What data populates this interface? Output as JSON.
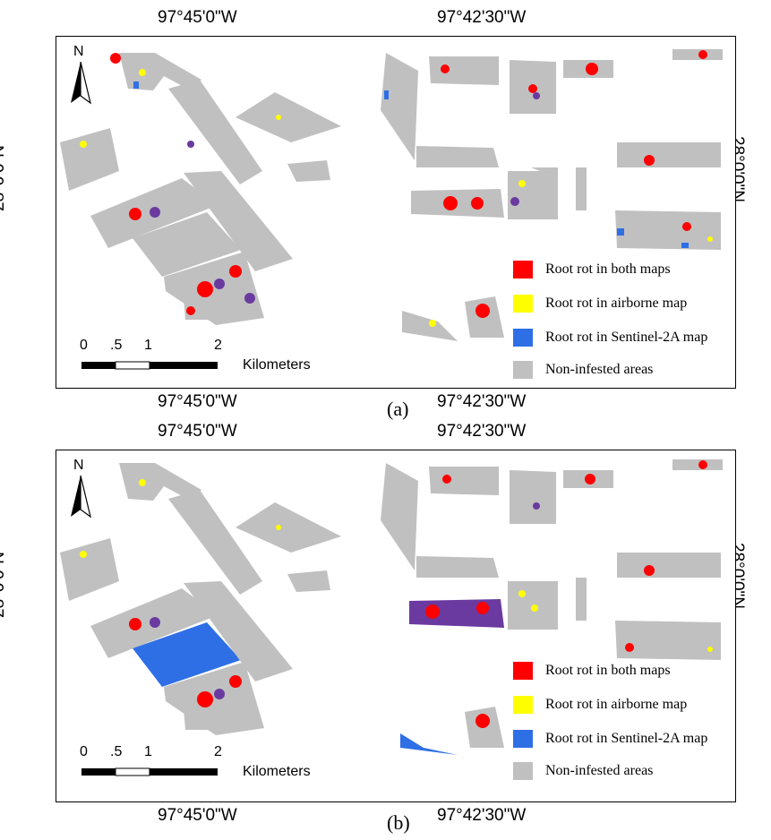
{
  "colors": {
    "both": "#ff0000",
    "airborne": "#ffff00",
    "sentinel": "#2f6fe6",
    "noninfested": "#c0c0c0",
    "overlap_purple": "#6a3aa0"
  },
  "coordinates": {
    "lon_left": "97°45'0\"W",
    "lon_right": "97°42'30\"W",
    "lat": "28°0'0\"N"
  },
  "north_label": "N",
  "scale": {
    "ticks": [
      "0",
      ".5",
      "1",
      "2"
    ],
    "units": "Kilometers"
  },
  "legend": {
    "items": [
      {
        "label": "Root rot in both maps",
        "color": "#ff0000"
      },
      {
        "label": "Root rot in airborne map",
        "color": "#ffff00"
      },
      {
        "label": "Root rot in Sentinel-2A map",
        "color": "#2f6fe6"
      },
      {
        "label": "Non-infested areas",
        "color": "#c0c0c0"
      }
    ]
  },
  "panels": [
    {
      "caption": "(a)"
    },
    {
      "caption": "(b)"
    }
  ]
}
